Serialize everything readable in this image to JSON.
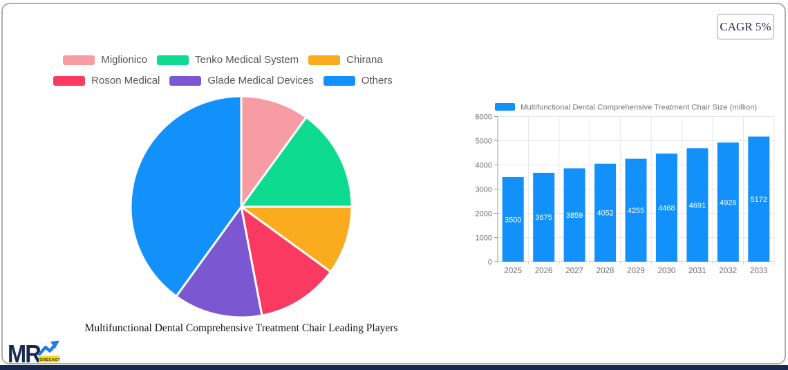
{
  "badge": {
    "label": "CAGR 5%"
  },
  "logo": {
    "brand": "MR",
    "sub": "FORECAST",
    "navy": "#16294e",
    "blue": "#1e7de5",
    "yellow": "#ffd60a"
  },
  "chart_data": [
    {
      "type": "pie",
      "title": "Multifunctional Dental Comprehensive Treatment Chair Leading Players",
      "labels": [
        "Miglionico",
        "Tenko Medical System",
        "Chirana",
        "Roson Medical",
        "Glade Medical Devices",
        "Others"
      ],
      "values": [
        10,
        15,
        10,
        12,
        13,
        40
      ],
      "values_estimated_from_angles": true,
      "colors": [
        "#f89ca3",
        "#0cdb90",
        "#fbac1e",
        "#fa3a61",
        "#7b57d2",
        "#1191f9"
      ],
      "legend_rows": [
        [
          0,
          1,
          2
        ],
        [
          3,
          4,
          5
        ]
      ],
      "legend_position": "top",
      "start_angle": "12-oclock-clockwise"
    },
    {
      "type": "bar",
      "series_label": "Multifunctional Dental Comprehensive Treatment Chair Size (million)",
      "categories": [
        "2025",
        "2026",
        "2027",
        "2028",
        "2029",
        "2030",
        "2031",
        "2032",
        "2033"
      ],
      "values": [
        3500,
        3675,
        3859,
        4052,
        4255,
        4468,
        4691,
        4926,
        5172
      ],
      "ylim": [
        0,
        6000
      ],
      "yticks": [
        0,
        1000,
        2000,
        3000,
        4000,
        5000,
        6000
      ],
      "bar_color": "#1191f9",
      "value_label_color": "#ffffff",
      "axis_text_color": "#6b6b6b",
      "legend_text_color": "#767676",
      "gridline_color": "#e7e7e7",
      "axis_line_color": "#999999",
      "grid": true,
      "legend_position": "top"
    }
  ]
}
